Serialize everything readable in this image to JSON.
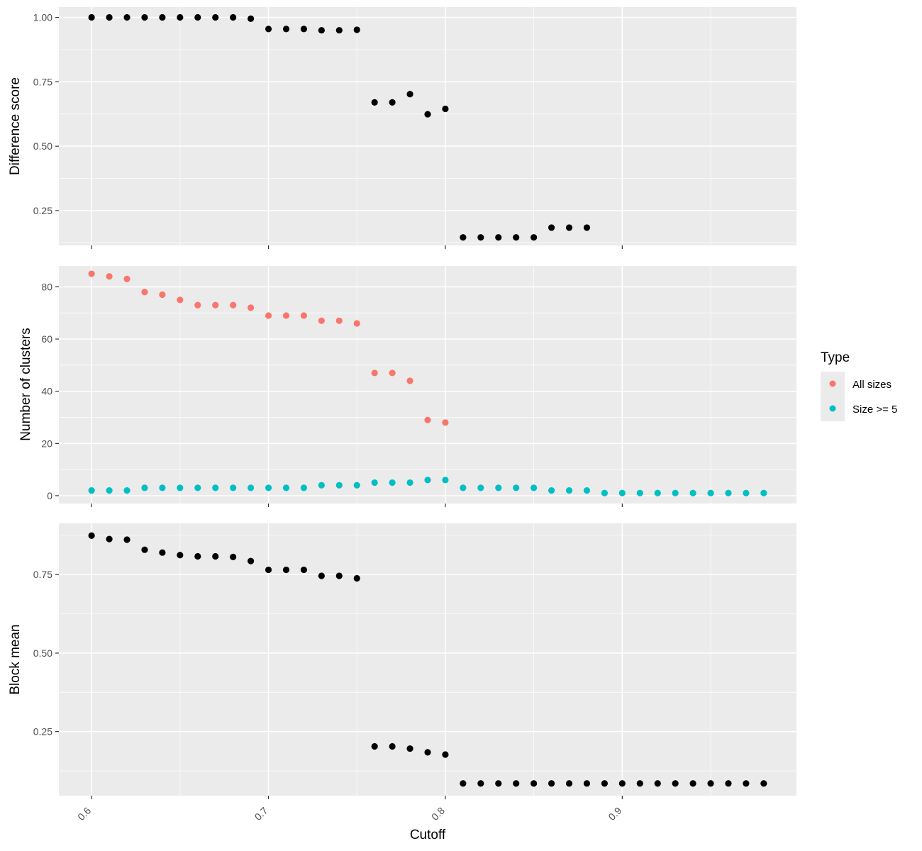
{
  "chart_data": [
    {
      "type": "scatter",
      "panel": "top",
      "title": "",
      "ylabel": "Difference score",
      "xlim": [
        0.5815,
        0.9985
      ],
      "ylim": [
        0.115,
        1.04
      ],
      "x_ticks": [
        0.6,
        0.7,
        0.8,
        0.9
      ],
      "y_ticks": [
        0.25,
        0.5,
        0.75,
        1.0
      ],
      "y_tick_labels": [
        "0.25",
        "0.50",
        "0.75",
        "1.00"
      ],
      "grid": true,
      "color": "#000000",
      "points": [
        [
          0.6,
          1.0
        ],
        [
          0.61,
          1.0
        ],
        [
          0.62,
          1.0
        ],
        [
          0.63,
          1.0
        ],
        [
          0.64,
          1.0
        ],
        [
          0.65,
          1.0
        ],
        [
          0.66,
          1.0
        ],
        [
          0.67,
          1.0
        ],
        [
          0.68,
          1.0
        ],
        [
          0.69,
          0.995
        ],
        [
          0.7,
          0.955
        ],
        [
          0.71,
          0.955
        ],
        [
          0.72,
          0.955
        ],
        [
          0.73,
          0.95
        ],
        [
          0.74,
          0.95
        ],
        [
          0.75,
          0.952
        ],
        [
          0.76,
          0.67
        ],
        [
          0.77,
          0.67
        ],
        [
          0.78,
          0.702
        ],
        [
          0.79,
          0.624
        ],
        [
          0.8,
          0.645
        ],
        [
          0.81,
          0.146
        ],
        [
          0.82,
          0.146
        ],
        [
          0.83,
          0.146
        ],
        [
          0.84,
          0.146
        ],
        [
          0.85,
          0.146
        ],
        [
          0.86,
          0.184
        ],
        [
          0.87,
          0.184
        ],
        [
          0.88,
          0.184
        ]
      ]
    },
    {
      "type": "scatter",
      "panel": "middle",
      "title": "",
      "ylabel": "Number of clusters",
      "xlim": [
        0.5815,
        0.9985
      ],
      "ylim": [
        -3,
        88
      ],
      "x_ticks": [
        0.6,
        0.7,
        0.8,
        0.9
      ],
      "y_ticks": [
        0,
        20,
        40,
        60,
        80
      ],
      "y_tick_labels": [
        "0",
        "20",
        "40",
        "60",
        "80"
      ],
      "grid": true,
      "series": [
        {
          "name": "All sizes",
          "color": "#F8766D",
          "points": [
            [
              0.6,
              85
            ],
            [
              0.61,
              84
            ],
            [
              0.62,
              83
            ],
            [
              0.63,
              78
            ],
            [
              0.64,
              77
            ],
            [
              0.65,
              75
            ],
            [
              0.66,
              73
            ],
            [
              0.67,
              73
            ],
            [
              0.68,
              73
            ],
            [
              0.69,
              72
            ],
            [
              0.7,
              69
            ],
            [
              0.71,
              69
            ],
            [
              0.72,
              69
            ],
            [
              0.73,
              67
            ],
            [
              0.74,
              67
            ],
            [
              0.75,
              66
            ],
            [
              0.76,
              47
            ],
            [
              0.77,
              47
            ],
            [
              0.78,
              44
            ],
            [
              0.79,
              29
            ],
            [
              0.8,
              28
            ]
          ]
        },
        {
          "name": "Size >= 5",
          "color": "#00BFC4",
          "points": [
            [
              0.6,
              2
            ],
            [
              0.61,
              2
            ],
            [
              0.62,
              2
            ],
            [
              0.63,
              3
            ],
            [
              0.64,
              3
            ],
            [
              0.65,
              3
            ],
            [
              0.66,
              3
            ],
            [
              0.67,
              3
            ],
            [
              0.68,
              3
            ],
            [
              0.69,
              3
            ],
            [
              0.7,
              3
            ],
            [
              0.71,
              3
            ],
            [
              0.72,
              3
            ],
            [
              0.73,
              4
            ],
            [
              0.74,
              4
            ],
            [
              0.75,
              4
            ],
            [
              0.76,
              5
            ],
            [
              0.77,
              5
            ],
            [
              0.78,
              5
            ],
            [
              0.79,
              6
            ],
            [
              0.8,
              6
            ],
            [
              0.81,
              3
            ],
            [
              0.82,
              3
            ],
            [
              0.83,
              3
            ],
            [
              0.84,
              3
            ],
            [
              0.85,
              3
            ],
            [
              0.86,
              2
            ],
            [
              0.87,
              2
            ],
            [
              0.88,
              2
            ],
            [
              0.89,
              1
            ],
            [
              0.9,
              1
            ],
            [
              0.91,
              1
            ],
            [
              0.92,
              1
            ],
            [
              0.93,
              1
            ],
            [
              0.94,
              1
            ],
            [
              0.95,
              1
            ],
            [
              0.96,
              1
            ],
            [
              0.97,
              1
            ],
            [
              0.98,
              1
            ]
          ]
        }
      ],
      "legend": {
        "title": "Type",
        "placement": "right",
        "entries": [
          "All sizes",
          "Size >= 5"
        ]
      }
    },
    {
      "type": "scatter",
      "panel": "bottom",
      "title": "",
      "ylabel": "Block mean",
      "xlabel": "Cutoff",
      "xlim": [
        0.5815,
        0.9985
      ],
      "ylim": [
        0.046,
        0.913
      ],
      "x_ticks": [
        0.6,
        0.7,
        0.8,
        0.9
      ],
      "x_tick_labels": [
        "0.6",
        "0.7",
        "0.8",
        "0.9"
      ],
      "y_ticks": [
        0.25,
        0.5,
        0.75
      ],
      "y_tick_labels": [
        "0.25",
        "0.50",
        "0.75"
      ],
      "grid": true,
      "color": "#000000",
      "points": [
        [
          0.6,
          0.874
        ],
        [
          0.61,
          0.863
        ],
        [
          0.62,
          0.861
        ],
        [
          0.63,
          0.829
        ],
        [
          0.64,
          0.82
        ],
        [
          0.65,
          0.812
        ],
        [
          0.66,
          0.808
        ],
        [
          0.67,
          0.808
        ],
        [
          0.68,
          0.806
        ],
        [
          0.69,
          0.793
        ],
        [
          0.7,
          0.765
        ],
        [
          0.71,
          0.765
        ],
        [
          0.72,
          0.765
        ],
        [
          0.73,
          0.746
        ],
        [
          0.74,
          0.746
        ],
        [
          0.75,
          0.738
        ],
        [
          0.76,
          0.203
        ],
        [
          0.77,
          0.203
        ],
        [
          0.78,
          0.196
        ],
        [
          0.79,
          0.184
        ],
        [
          0.8,
          0.177
        ],
        [
          0.81,
          0.085
        ],
        [
          0.82,
          0.085
        ],
        [
          0.83,
          0.085
        ],
        [
          0.84,
          0.085
        ],
        [
          0.85,
          0.085
        ],
        [
          0.86,
          0.085
        ],
        [
          0.87,
          0.085
        ],
        [
          0.88,
          0.085
        ],
        [
          0.89,
          0.085
        ],
        [
          0.9,
          0.085
        ],
        [
          0.91,
          0.085
        ],
        [
          0.92,
          0.085
        ],
        [
          0.93,
          0.085
        ],
        [
          0.94,
          0.085
        ],
        [
          0.95,
          0.085
        ],
        [
          0.96,
          0.085
        ],
        [
          0.97,
          0.085
        ],
        [
          0.98,
          0.085
        ]
      ]
    }
  ]
}
